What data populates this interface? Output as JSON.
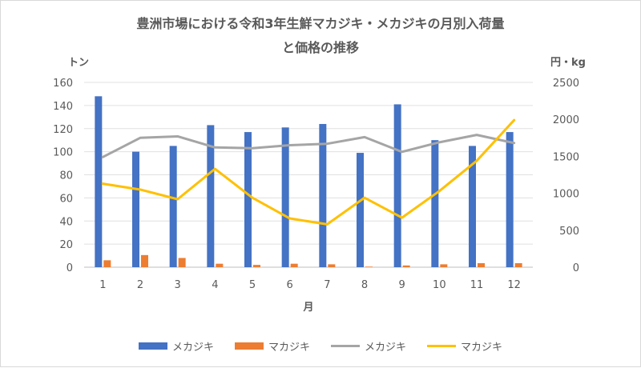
{
  "chart_data": {
    "type": "bar+line",
    "title_line1": "豊洲市場における令和3年生鮮マカジキ・メカジキの月別入荷量",
    "title_line2": "と価格の推移",
    "ylabel_left": "トン",
    "ylabel_right": "円・kg",
    "xlabel": "月",
    "categories": [
      "1",
      "2",
      "3",
      "4",
      "5",
      "6",
      "7",
      "8",
      "9",
      "10",
      "11",
      "12"
    ],
    "y_left": {
      "min": 0,
      "max": 160,
      "ticks": [
        "0",
        "20",
        "40",
        "60",
        "80",
        "100",
        "120",
        "140",
        "160"
      ]
    },
    "y_right": {
      "min": 0,
      "max": 2500,
      "ticks": [
        "0",
        "500",
        "1000",
        "1500",
        "2000",
        "2500"
      ]
    },
    "series": [
      {
        "name": "メカジキ",
        "kind": "bar",
        "axis": "left",
        "color": "#4472C4",
        "values": [
          148,
          100,
          105,
          123,
          117,
          121,
          124,
          99,
          141,
          110,
          105,
          117
        ]
      },
      {
        "name": "マカジキ",
        "kind": "bar",
        "axis": "left",
        "color": "#ED7D31",
        "values": [
          6,
          10.5,
          8,
          3,
          2,
          3,
          2.5,
          0.5,
          1.5,
          2.5,
          3.5,
          3.5
        ]
      },
      {
        "name": "メカジキ",
        "kind": "line",
        "axis": "right",
        "color": "#A5A5A5",
        "values": [
          1490,
          1750,
          1770,
          1620,
          1610,
          1650,
          1670,
          1760,
          1560,
          1690,
          1790,
          1680
        ]
      },
      {
        "name": "マカジキ",
        "kind": "line",
        "axis": "right",
        "color": "#FFC000",
        "values": [
          1130,
          1050,
          920,
          1330,
          940,
          660,
          580,
          940,
          670,
          1030,
          1440,
          1990
        ]
      }
    ]
  }
}
